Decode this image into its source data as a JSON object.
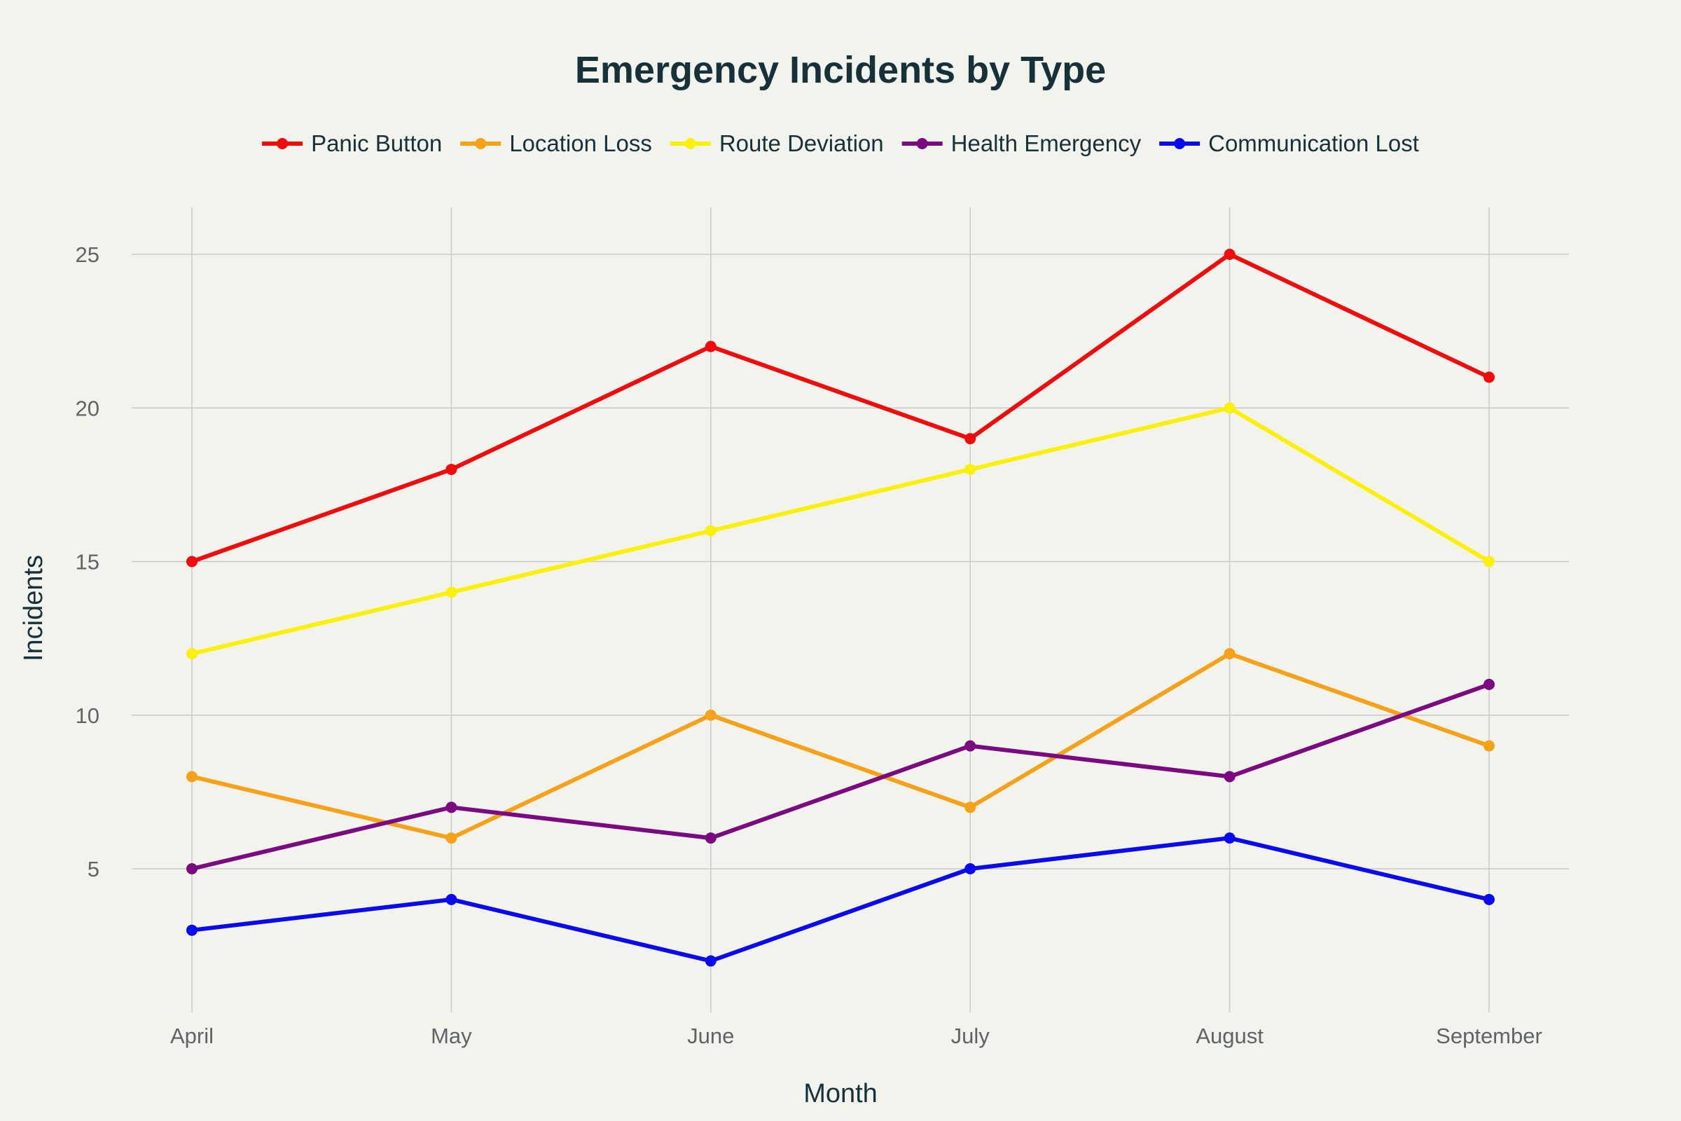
{
  "chart_data": {
    "type": "line",
    "title": "Emergency Incidents by Type",
    "xlabel": "Month",
    "ylabel": "Incidents",
    "categories": [
      "April",
      "May",
      "June",
      "July",
      "August",
      "September"
    ],
    "y_ticks": [
      5,
      10,
      15,
      20,
      25
    ],
    "ylim": [
      0.5,
      26.5
    ],
    "grid": true,
    "legend_position": "top-center",
    "series": [
      {
        "name": "Panic Button",
        "color": "#ee0c0c",
        "values": [
          15,
          18,
          22,
          19,
          25,
          21
        ]
      },
      {
        "name": "Location Loss",
        "color": "#f5a21a",
        "values": [
          8,
          6,
          10,
          7,
          12,
          9
        ]
      },
      {
        "name": "Route Deviation",
        "color": "#fbf00c",
        "values": [
          12,
          14,
          16,
          18,
          20,
          15
        ]
      },
      {
        "name": "Health Emergency",
        "color": "#7b0a80",
        "values": [
          5,
          7,
          6,
          9,
          8,
          11
        ]
      },
      {
        "name": "Communication Lost",
        "color": "#0a0aee",
        "values": [
          3,
          4,
          2,
          5,
          6,
          4
        ]
      }
    ]
  }
}
